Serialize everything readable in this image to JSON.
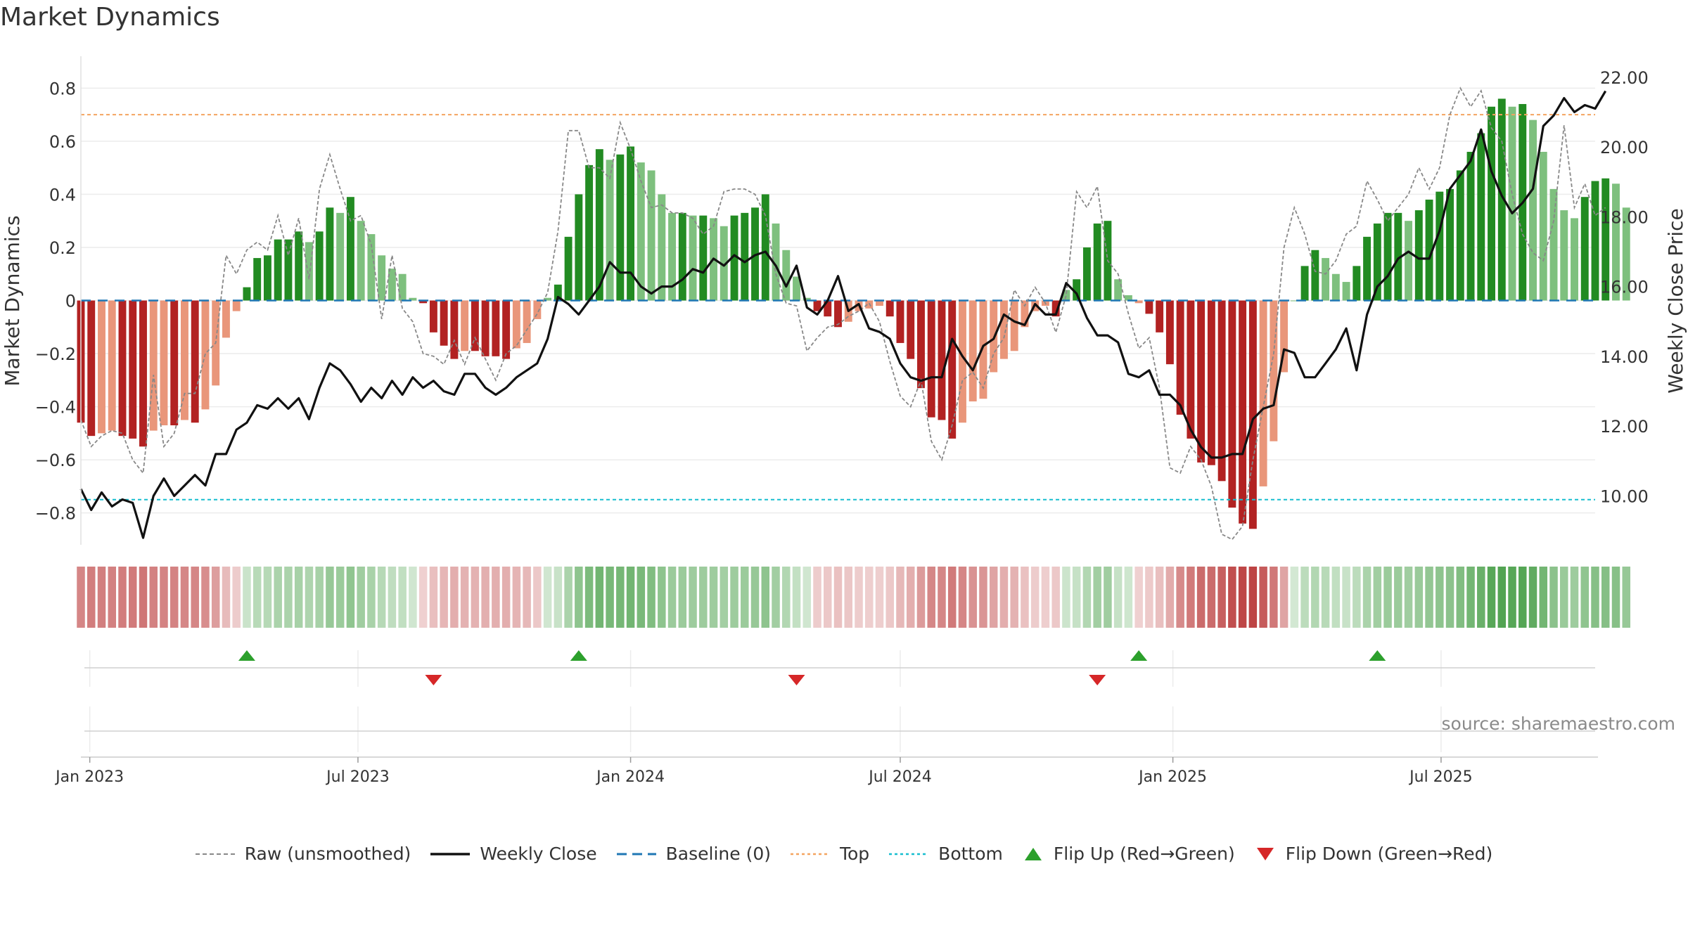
{
  "title": "Market Dynamics",
  "source": "source: sharemaestro.com",
  "colors": {
    "green_strong": "#228B22",
    "green_light": "#7EC07E",
    "red_strong": "#B22222",
    "red_light": "#E9967A",
    "raw_line": "#888888",
    "close_line": "#111111",
    "baseline": "#1f77b4",
    "top": "#f4a460",
    "bottom": "#17becf",
    "flip_up": "#2ca02c",
    "flip_down": "#d62728"
  },
  "legend": [
    {
      "key": "raw",
      "label": "Raw (unsmoothed)"
    },
    {
      "key": "close",
      "label": "Weekly Close"
    },
    {
      "key": "baseline",
      "label": "Baseline (0)"
    },
    {
      "key": "top",
      "label": "Top"
    },
    {
      "key": "bottom",
      "label": "Bottom"
    },
    {
      "key": "flip_up",
      "label": "Flip Up (Red→Green)"
    },
    {
      "key": "flip_down",
      "label": "Flip Down (Green→Red)"
    }
  ],
  "chart_data": {
    "type": "bar",
    "title": "Market Dynamics",
    "ylabel_left": "Market Dynamics",
    "ylabel_right": "Weekly Close Price",
    "ylim_left": [
      -0.92,
      0.92
    ],
    "ylim_right": [
      8.6,
      22.6
    ],
    "yticks_left": [
      "0.8",
      "0.6",
      "0.4",
      "0.2",
      "0",
      "−0.2",
      "−0.4",
      "−0.6",
      "−0.8"
    ],
    "yticks_left_values": [
      0.8,
      0.6,
      0.4,
      0.2,
      0,
      -0.2,
      -0.4,
      -0.6,
      -0.8
    ],
    "yticks_right": [
      "22.00",
      "20.00",
      "18.00",
      "16.00",
      "14.00",
      "12.00",
      "10.00"
    ],
    "yticks_right_values": [
      22,
      20,
      18,
      16,
      14,
      12,
      10
    ],
    "x_start": "2022-12-26",
    "x_end": "2025-10-13",
    "xticks": [
      {
        "date": "2023-01-01",
        "label": "Jan 2023"
      },
      {
        "date": "2023-07-01",
        "label": "Jul 2023"
      },
      {
        "date": "2024-01-01",
        "label": "Jan 2024"
      },
      {
        "date": "2024-07-01",
        "label": "Jul 2024"
      },
      {
        "date": "2025-01-01",
        "label": "Jan 2025"
      },
      {
        "date": "2025-07-01",
        "label": "Jul 2025"
      }
    ],
    "top_level": 0.7,
    "bottom_level": -0.75,
    "baseline": 0,
    "weeks_start": "2022-12-26",
    "bars": [
      -0.46,
      -0.51,
      -0.5,
      -0.49,
      -0.51,
      -0.52,
      -0.55,
      -0.49,
      -0.47,
      -0.47,
      -0.45,
      -0.46,
      -0.41,
      -0.32,
      -0.14,
      -0.04,
      0.05,
      0.16,
      0.17,
      0.23,
      0.23,
      0.26,
      0.22,
      0.26,
      0.35,
      0.33,
      0.39,
      0.3,
      0.25,
      0.17,
      0.12,
      0.1,
      0.01,
      -0.01,
      -0.12,
      -0.17,
      -0.22,
      -0.19,
      -0.19,
      -0.21,
      -0.21,
      -0.22,
      -0.18,
      -0.16,
      -0.07,
      0.01,
      0.06,
      0.24,
      0.4,
      0.51,
      0.57,
      0.53,
      0.55,
      0.58,
      0.52,
      0.49,
      0.4,
      0.33,
      0.33,
      0.32,
      0.32,
      0.31,
      0.28,
      0.32,
      0.33,
      0.35,
      0.4,
      0.29,
      0.19,
      0.09,
      0.01,
      -0.04,
      -0.06,
      -0.1,
      -0.08,
      -0.04,
      -0.03,
      -0.02,
      -0.06,
      -0.16,
      -0.22,
      -0.33,
      -0.44,
      -0.45,
      -0.52,
      -0.46,
      -0.38,
      -0.37,
      -0.27,
      -0.22,
      -0.19,
      -0.1,
      -0.04,
      -0.02,
      -0.06,
      0.04,
      0.08,
      0.2,
      0.29,
      0.3,
      0.08,
      0.02,
      -0.01,
      -0.05,
      -0.12,
      -0.24,
      -0.43,
      -0.52,
      -0.61,
      -0.62,
      -0.68,
      -0.78,
      -0.84,
      -0.86,
      -0.7,
      -0.53,
      -0.27,
      0.0,
      0.13,
      0.19,
      0.16,
      0.1,
      0.07,
      0.13,
      0.24,
      0.29,
      0.33,
      0.33,
      0.3,
      0.34,
      0.38,
      0.41,
      0.42,
      0.49,
      0.56,
      0.63,
      0.73,
      0.76,
      0.73,
      0.74,
      0.68,
      0.56,
      0.42,
      0.34,
      0.31,
      0.39,
      0.45,
      0.46,
      0.44,
      0.35
    ],
    "raw": [
      -0.45,
      -0.55,
      -0.51,
      -0.49,
      -0.5,
      -0.6,
      -0.65,
      -0.28,
      -0.55,
      -0.5,
      -0.35,
      -0.35,
      -0.2,
      -0.16,
      0.17,
      0.1,
      0.19,
      0.22,
      0.19,
      0.32,
      0.17,
      0.31,
      0.08,
      0.42,
      0.55,
      0.42,
      0.3,
      0.32,
      0.21,
      -0.07,
      0.17,
      -0.03,
      -0.08,
      -0.2,
      -0.21,
      -0.24,
      -0.15,
      -0.24,
      -0.14,
      -0.22,
      -0.3,
      -0.2,
      -0.17,
      -0.11,
      -0.05,
      0.03,
      0.26,
      0.64,
      0.64,
      0.5,
      0.5,
      0.46,
      0.67,
      0.57,
      0.45,
      0.35,
      0.36,
      0.33,
      0.33,
      0.31,
      0.25,
      0.28,
      0.41,
      0.42,
      0.42,
      0.4,
      0.32,
      0.1,
      -0.01,
      -0.02,
      -0.19,
      -0.14,
      -0.1,
      -0.09,
      -0.06,
      -0.04,
      -0.01,
      -0.08,
      -0.23,
      -0.36,
      -0.4,
      -0.3,
      -0.53,
      -0.6,
      -0.47,
      -0.3,
      -0.27,
      -0.33,
      -0.2,
      -0.14,
      0.04,
      -0.02,
      0.05,
      -0.01,
      -0.12,
      0.02,
      0.41,
      0.35,
      0.43,
      0.15,
      0.1,
      -0.05,
      -0.18,
      -0.14,
      -0.33,
      -0.63,
      -0.65,
      -0.55,
      -0.6,
      -0.7,
      -0.88,
      -0.9,
      -0.85,
      -0.6,
      -0.4,
      -0.2,
      0.2,
      0.35,
      0.25,
      0.11,
      0.1,
      0.15,
      0.25,
      0.28,
      0.45,
      0.38,
      0.3,
      0.35,
      0.4,
      0.5,
      0.42,
      0.5,
      0.7,
      0.8,
      0.73,
      0.79,
      0.65,
      0.6,
      0.4,
      0.25,
      0.18,
      0.15,
      0.3,
      0.66,
      0.35,
      0.44,
      0.32,
      0.35
    ],
    "close": [
      10.2,
      9.6,
      10.1,
      9.7,
      9.9,
      9.8,
      8.8,
      10.0,
      10.5,
      10.0,
      10.3,
      10.6,
      10.3,
      11.2,
      11.2,
      11.9,
      12.1,
      12.6,
      12.5,
      12.8,
      12.5,
      12.8,
      12.2,
      13.1,
      13.8,
      13.6,
      13.2,
      12.7,
      13.1,
      12.8,
      13.3,
      12.9,
      13.4,
      13.1,
      13.3,
      13.0,
      12.9,
      13.5,
      13.5,
      13.1,
      12.9,
      13.1,
      13.4,
      13.6,
      13.8,
      14.5,
      15.7,
      15.5,
      15.2,
      15.6,
      16.0,
      16.7,
      16.4,
      16.4,
      16.0,
      15.8,
      16.0,
      16.0,
      16.2,
      16.5,
      16.4,
      16.8,
      16.6,
      16.9,
      16.7,
      16.9,
      17.0,
      16.6,
      16.0,
      16.6,
      15.4,
      15.2,
      15.6,
      16.3,
      15.3,
      15.5,
      14.8,
      14.7,
      14.5,
      13.8,
      13.4,
      13.3,
      13.4,
      13.4,
      14.5,
      14.0,
      13.6,
      14.3,
      14.5,
      15.2,
      15.0,
      14.9,
      15.5,
      15.2,
      15.2,
      16.1,
      15.8,
      15.1,
      14.6,
      14.6,
      14.4,
      13.5,
      13.4,
      13.6,
      12.9,
      12.9,
      12.6,
      11.9,
      11.4,
      11.1,
      11.1,
      11.2,
      11.2,
      12.2,
      12.5,
      12.6,
      14.2,
      14.1,
      13.4,
      13.4,
      13.8,
      14.2,
      14.8,
      13.6,
      15.2,
      16.0,
      16.3,
      16.8,
      17.0,
      16.8,
      16.8,
      17.6,
      18.8,
      19.2,
      19.6,
      20.5,
      19.3,
      18.6,
      18.1,
      18.4,
      18.8,
      20.6,
      20.9,
      21.4,
      21.0,
      21.2,
      21.1,
      21.6
    ]
  },
  "strength_strip": "color-coded by smoothed value",
  "flip_up_weeks": [
    16,
    48,
    102,
    125
  ],
  "flip_down_weeks": [
    34,
    69,
    98
  ]
}
